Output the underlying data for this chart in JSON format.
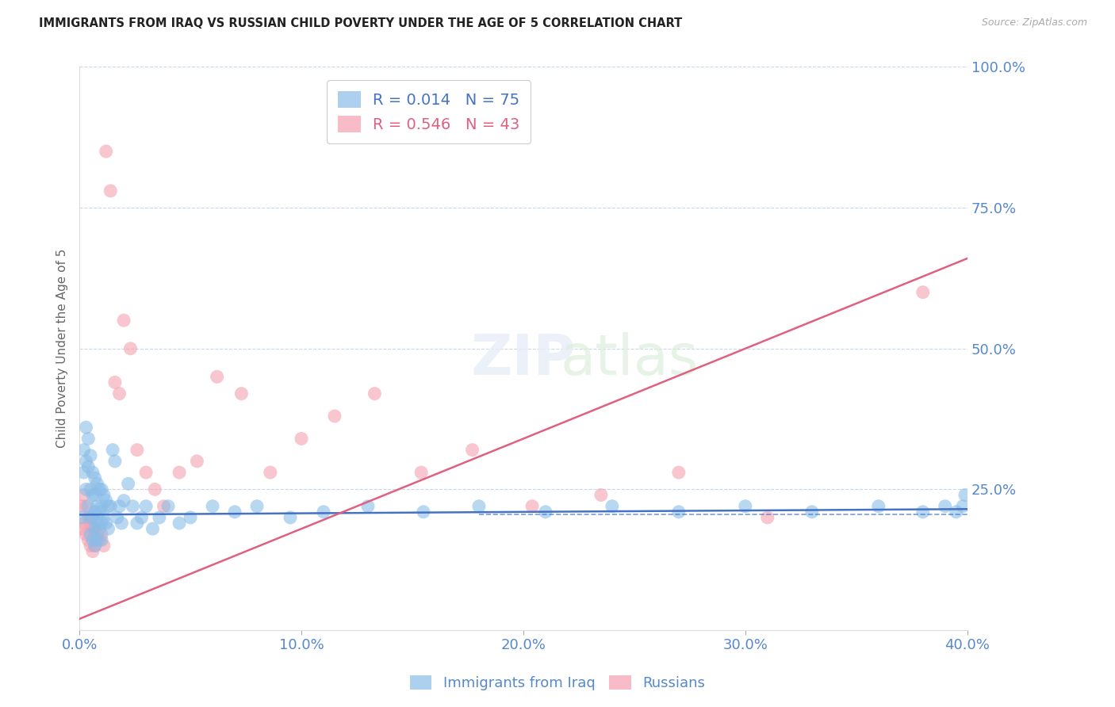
{
  "title": "IMMIGRANTS FROM IRAQ VS RUSSIAN CHILD POVERTY UNDER THE AGE OF 5 CORRELATION CHART",
  "source": "Source: ZipAtlas.com",
  "ylabel": "Child Poverty Under the Age of 5",
  "legend1_label": "Immigrants from Iraq",
  "legend2_label": "Russians",
  "R1": 0.014,
  "N1": 75,
  "R2": 0.546,
  "N2": 43,
  "blue_color": "#8abde8",
  "pink_color": "#f4a0b0",
  "blue_line_color": "#4472c4",
  "pink_line_color": "#e06080",
  "axis_color": "#5588cc",
  "grid_color": "#c8d8ea",
  "background": "#ffffff",
  "blue_scatter_x": [
    0.001,
    0.002,
    0.002,
    0.003,
    0.003,
    0.003,
    0.004,
    0.004,
    0.004,
    0.005,
    0.005,
    0.005,
    0.005,
    0.006,
    0.006,
    0.006,
    0.006,
    0.007,
    0.007,
    0.007,
    0.007,
    0.007,
    0.008,
    0.008,
    0.008,
    0.008,
    0.009,
    0.009,
    0.009,
    0.01,
    0.01,
    0.01,
    0.01,
    0.011,
    0.011,
    0.012,
    0.012,
    0.013,
    0.013,
    0.014,
    0.015,
    0.016,
    0.017,
    0.018,
    0.019,
    0.02,
    0.022,
    0.024,
    0.026,
    0.028,
    0.03,
    0.033,
    0.036,
    0.04,
    0.045,
    0.05,
    0.06,
    0.07,
    0.08,
    0.095,
    0.11,
    0.13,
    0.155,
    0.18,
    0.21,
    0.24,
    0.27,
    0.3,
    0.33,
    0.36,
    0.38,
    0.39,
    0.395,
    0.398,
    0.399
  ],
  "blue_scatter_y": [
    0.2,
    0.32,
    0.28,
    0.36,
    0.3,
    0.25,
    0.34,
    0.29,
    0.22,
    0.31,
    0.25,
    0.2,
    0.17,
    0.28,
    0.24,
    0.2,
    0.16,
    0.27,
    0.24,
    0.21,
    0.18,
    0.15,
    0.26,
    0.22,
    0.19,
    0.16,
    0.25,
    0.21,
    0.18,
    0.25,
    0.22,
    0.19,
    0.16,
    0.24,
    0.2,
    0.23,
    0.19,
    0.22,
    0.18,
    0.22,
    0.32,
    0.3,
    0.2,
    0.22,
    0.19,
    0.23,
    0.26,
    0.22,
    0.19,
    0.2,
    0.22,
    0.18,
    0.2,
    0.22,
    0.19,
    0.2,
    0.22,
    0.21,
    0.22,
    0.2,
    0.21,
    0.22,
    0.21,
    0.22,
    0.21,
    0.22,
    0.21,
    0.22,
    0.21,
    0.22,
    0.21,
    0.22,
    0.21,
    0.22,
    0.24
  ],
  "pink_scatter_x": [
    0.001,
    0.001,
    0.002,
    0.002,
    0.003,
    0.003,
    0.004,
    0.004,
    0.005,
    0.005,
    0.006,
    0.006,
    0.007,
    0.007,
    0.008,
    0.009,
    0.01,
    0.011,
    0.012,
    0.014,
    0.016,
    0.018,
    0.02,
    0.023,
    0.026,
    0.03,
    0.034,
    0.038,
    0.045,
    0.053,
    0.062,
    0.073,
    0.086,
    0.1,
    0.115,
    0.133,
    0.154,
    0.177,
    0.204,
    0.235,
    0.27,
    0.31,
    0.38
  ],
  "pink_scatter_y": [
    0.22,
    0.18,
    0.24,
    0.19,
    0.22,
    0.17,
    0.2,
    0.16,
    0.19,
    0.15,
    0.18,
    0.14,
    0.18,
    0.15,
    0.17,
    0.16,
    0.17,
    0.15,
    0.85,
    0.78,
    0.44,
    0.42,
    0.55,
    0.5,
    0.32,
    0.28,
    0.25,
    0.22,
    0.28,
    0.3,
    0.45,
    0.42,
    0.28,
    0.34,
    0.38,
    0.42,
    0.28,
    0.32,
    0.22,
    0.24,
    0.28,
    0.2,
    0.6
  ],
  "xlim": [
    0.0,
    0.4
  ],
  "ylim": [
    0.0,
    1.0
  ],
  "blue_trend_x": [
    0.0,
    0.4
  ],
  "blue_trend_y": [
    0.205,
    0.215
  ],
  "pink_trend_x": [
    0.0,
    0.4
  ],
  "pink_trend_y": [
    0.02,
    0.66
  ],
  "blue_hline_y": 0.205,
  "blue_hline_x_start": 0.18,
  "blue_hline_x_end": 0.4,
  "yticks": [
    0.0,
    0.25,
    0.5,
    0.75,
    1.0
  ],
  "ytick_labels": [
    "",
    "25.0%",
    "50.0%",
    "75.0%",
    "100.0%"
  ],
  "xticks": [
    0.0,
    0.1,
    0.2,
    0.3,
    0.4
  ],
  "xtick_labels": [
    "0.0%",
    "10.0%",
    "20.0%",
    "30.0%",
    "40.0%"
  ]
}
